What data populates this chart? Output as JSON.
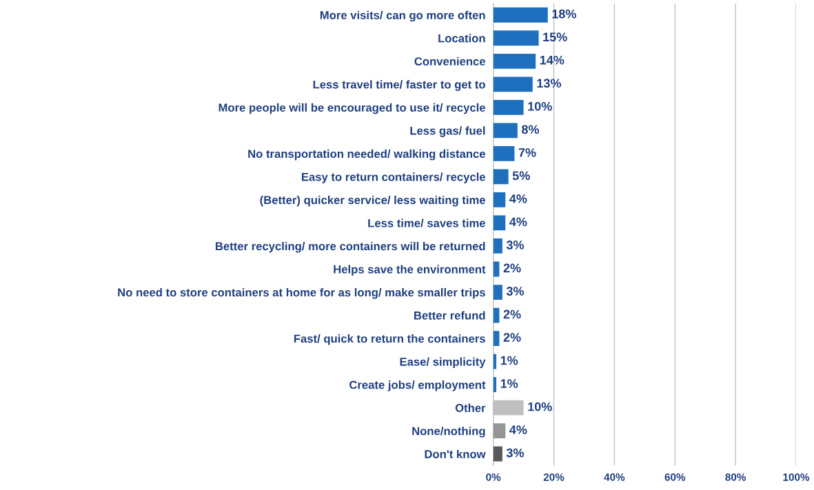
{
  "chart_data": {
    "type": "bar",
    "orientation": "horizontal",
    "categories": [
      "More visits/ can go more often",
      "Location",
      "Convenience",
      "Less travel time/ faster to get to",
      "More people will be encouraged to use it/ recycle",
      "Less gas/ fuel",
      "No transportation needed/ walking distance",
      "Easy to return containers/ recycle",
      "(Better) quicker service/ less waiting time",
      "Less time/ saves time",
      "Better recycling/ more containers will be returned",
      "Helps save the environment",
      "No need to store containers at home for as long/ make smaller trips",
      "Better refund",
      "Fast/ quick to return the containers",
      "Ease/ simplicity",
      "Create jobs/ employment",
      "Other",
      "None/nothing",
      "Don't know"
    ],
    "values": [
      18,
      15,
      14,
      13,
      10,
      8,
      7,
      5,
      4,
      4,
      3,
      2,
      3,
      2,
      2,
      1,
      1,
      10,
      4,
      3
    ],
    "value_labels": [
      "18%",
      "15%",
      "14%",
      "13%",
      "10%",
      "8%",
      "7%",
      "5%",
      "4%",
      "4%",
      "3%",
      "2%",
      "3%",
      "2%",
      "2%",
      "1%",
      "1%",
      "10%",
      "4%",
      "3%"
    ],
    "colors": [
      "#1f6fbf",
      "#1f6fbf",
      "#1f6fbf",
      "#1f6fbf",
      "#1f6fbf",
      "#1f6fbf",
      "#1f6fbf",
      "#1f6fbf",
      "#1f6fbf",
      "#1f6fbf",
      "#1f6fbf",
      "#1f6fbf",
      "#1f6fbf",
      "#1f6fbf",
      "#1f6fbf",
      "#1f6fbf",
      "#1f6fbf",
      "#bfbfbf",
      "#969696",
      "#595959"
    ],
    "xlim": [
      0,
      100
    ],
    "xticks": [
      {
        "value": 0,
        "label": "0%"
      },
      {
        "value": 20,
        "label": "20%"
      },
      {
        "value": 40,
        "label": "40%"
      },
      {
        "value": 60,
        "label": "60%"
      },
      {
        "value": 80,
        "label": "80%"
      },
      {
        "value": 100,
        "label": "100%"
      }
    ],
    "grid": "x"
  }
}
